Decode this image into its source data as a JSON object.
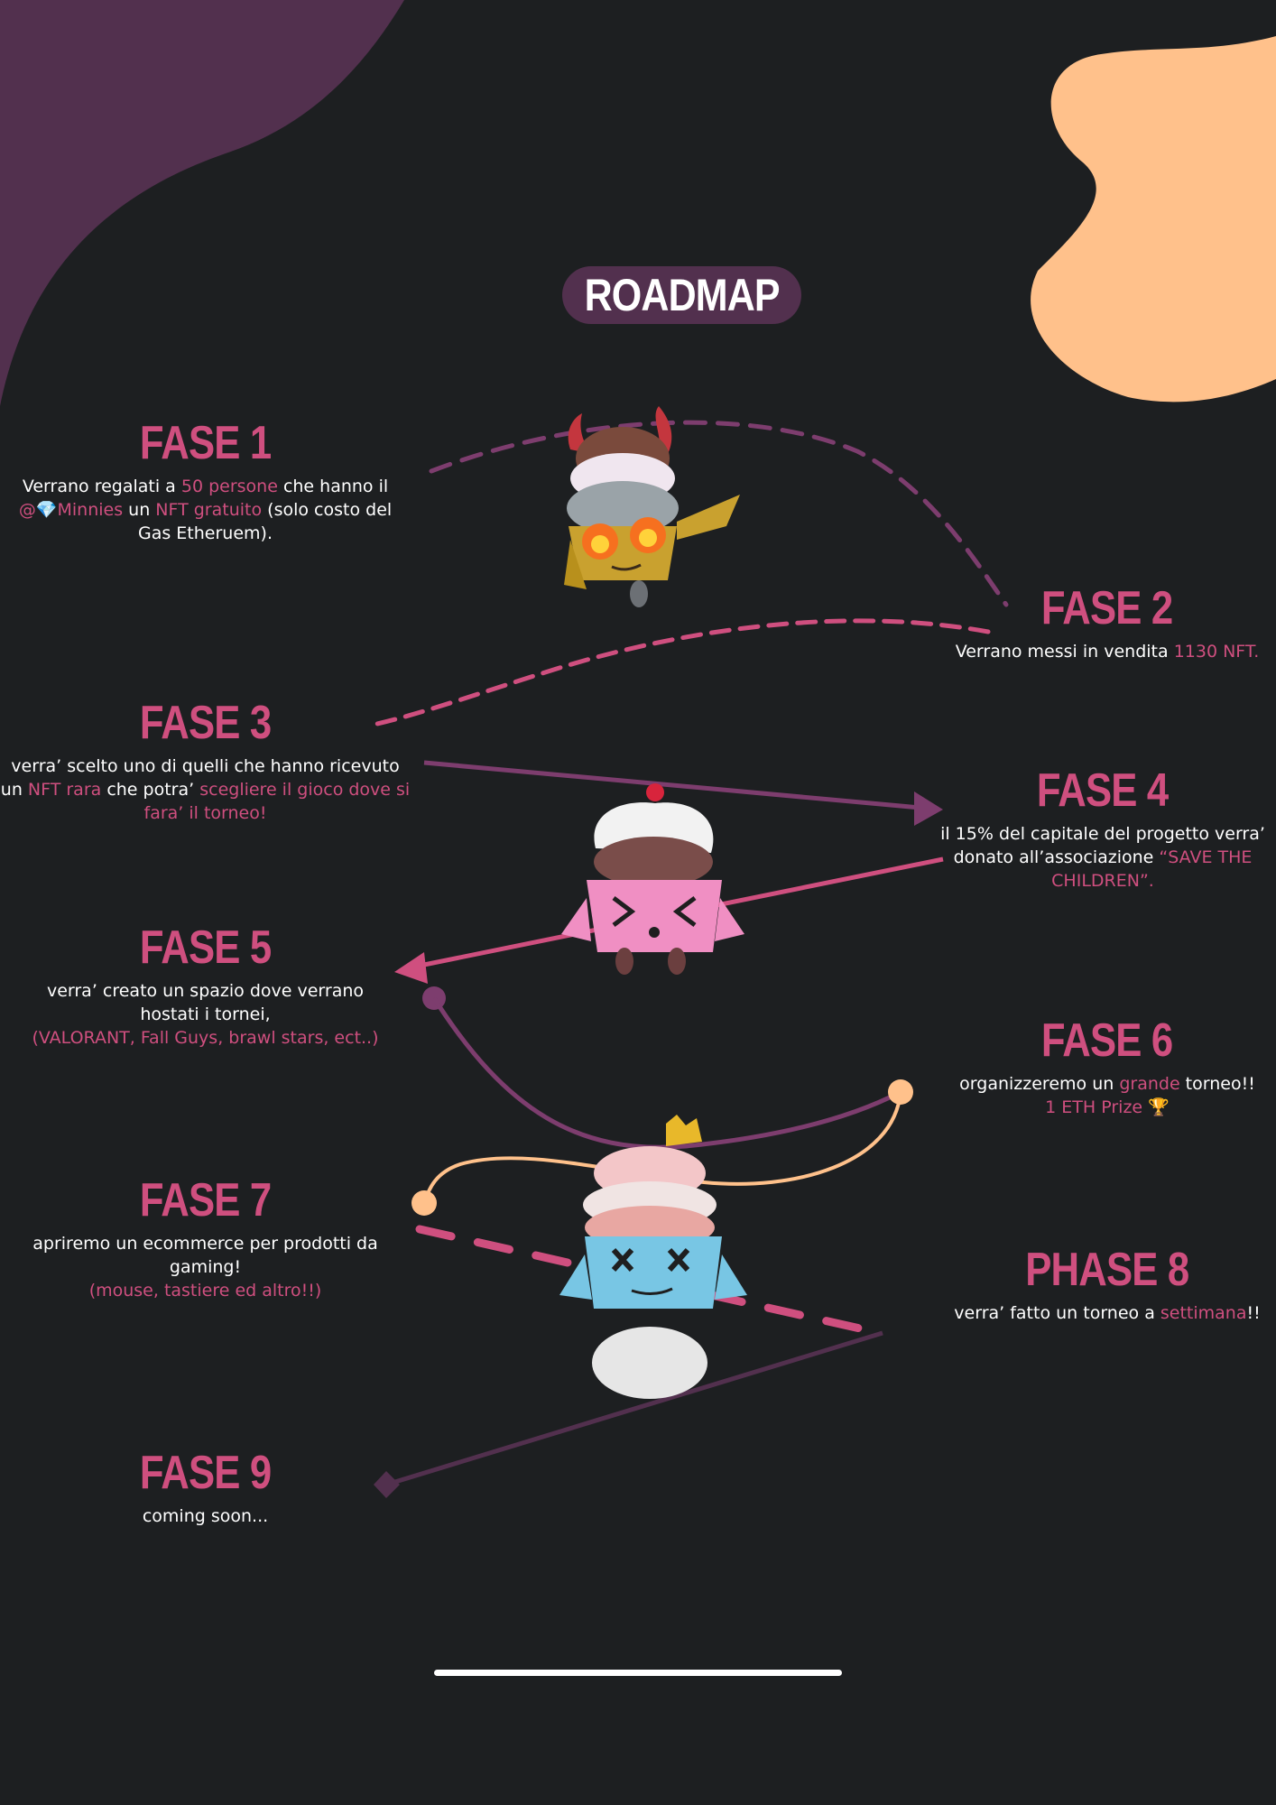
{
  "title": "ROADMAP",
  "colors": {
    "background": "#1d1f21",
    "accent_pink": "#cf4f7f",
    "purple": "#52304e",
    "peach": "#ffc18b"
  },
  "phases": [
    {
      "title": "FASE 1",
      "desc": [
        {
          "text": "Verrano regalati a ",
          "hl": false
        },
        {
          "text": "50 persone",
          "hl": true
        },
        {
          "text": " che hanno il ",
          "hl": false
        },
        {
          "text": "@💎Minnies",
          "hl": true
        },
        {
          "text": " un ",
          "hl": false
        },
        {
          "text": "NFT gratuito",
          "hl": true
        },
        {
          "text": " (solo costo del Gas Etheruem).",
          "hl": false
        }
      ]
    },
    {
      "title": "FASE 2",
      "desc": [
        {
          "text": "Verrano messi in vendita ",
          "hl": false
        },
        {
          "text": "1130 NFT.",
          "hl": true
        }
      ]
    },
    {
      "title": "FASE 3",
      "desc": [
        {
          "text": "verra’ scelto uno di quelli che hanno ricevuto un ",
          "hl": false
        },
        {
          "text": "NFT rara",
          "hl": true
        },
        {
          "text": " che potra’ ",
          "hl": false
        },
        {
          "text": "scegliere il gioco dove si fara’ il torneo!",
          "hl": true
        }
      ]
    },
    {
      "title": "FASE 4",
      "desc": [
        {
          "text": "il 15% del capitale del progetto verra’ donato all’associazione ",
          "hl": false
        },
        {
          "text": "“SAVE THE CHILDREN”.",
          "hl": true
        }
      ]
    },
    {
      "title": "FASE 5",
      "desc": [
        {
          "text": "verra’ creato un spazio dove verrano hostati i tornei,",
          "hl": false
        },
        {
          "text": "(VALORANT, Fall Guys, brawl stars, ect..)",
          "hl": true
        }
      ]
    },
    {
      "title": "FASE 6",
      "desc": [
        {
          "text": "organizzeremo un ",
          "hl": false
        },
        {
          "text": "grande",
          "hl": true
        },
        {
          "text": " torneo!!",
          "hl": false
        },
        {
          "text": "1 ETH Prize 🏆",
          "hl": true
        }
      ]
    },
    {
      "title": "FASE 7",
      "desc": [
        {
          "text": "apriremo un ecommerce per prodotti da gaming!",
          "hl": false
        },
        {
          "text": "(mouse, tastiere ed altro!!)",
          "hl": true
        }
      ]
    },
    {
      "title": "PHASE 8",
      "desc": [
        {
          "text": "verra’ fatto un torneo a ",
          "hl": false
        },
        {
          "text": "settimana",
          "hl": true
        },
        {
          "text": "!!",
          "hl": false
        }
      ]
    },
    {
      "title": "FASE 9",
      "desc": [
        {
          "text": "coming soon...",
          "hl": false
        }
      ]
    }
  ]
}
